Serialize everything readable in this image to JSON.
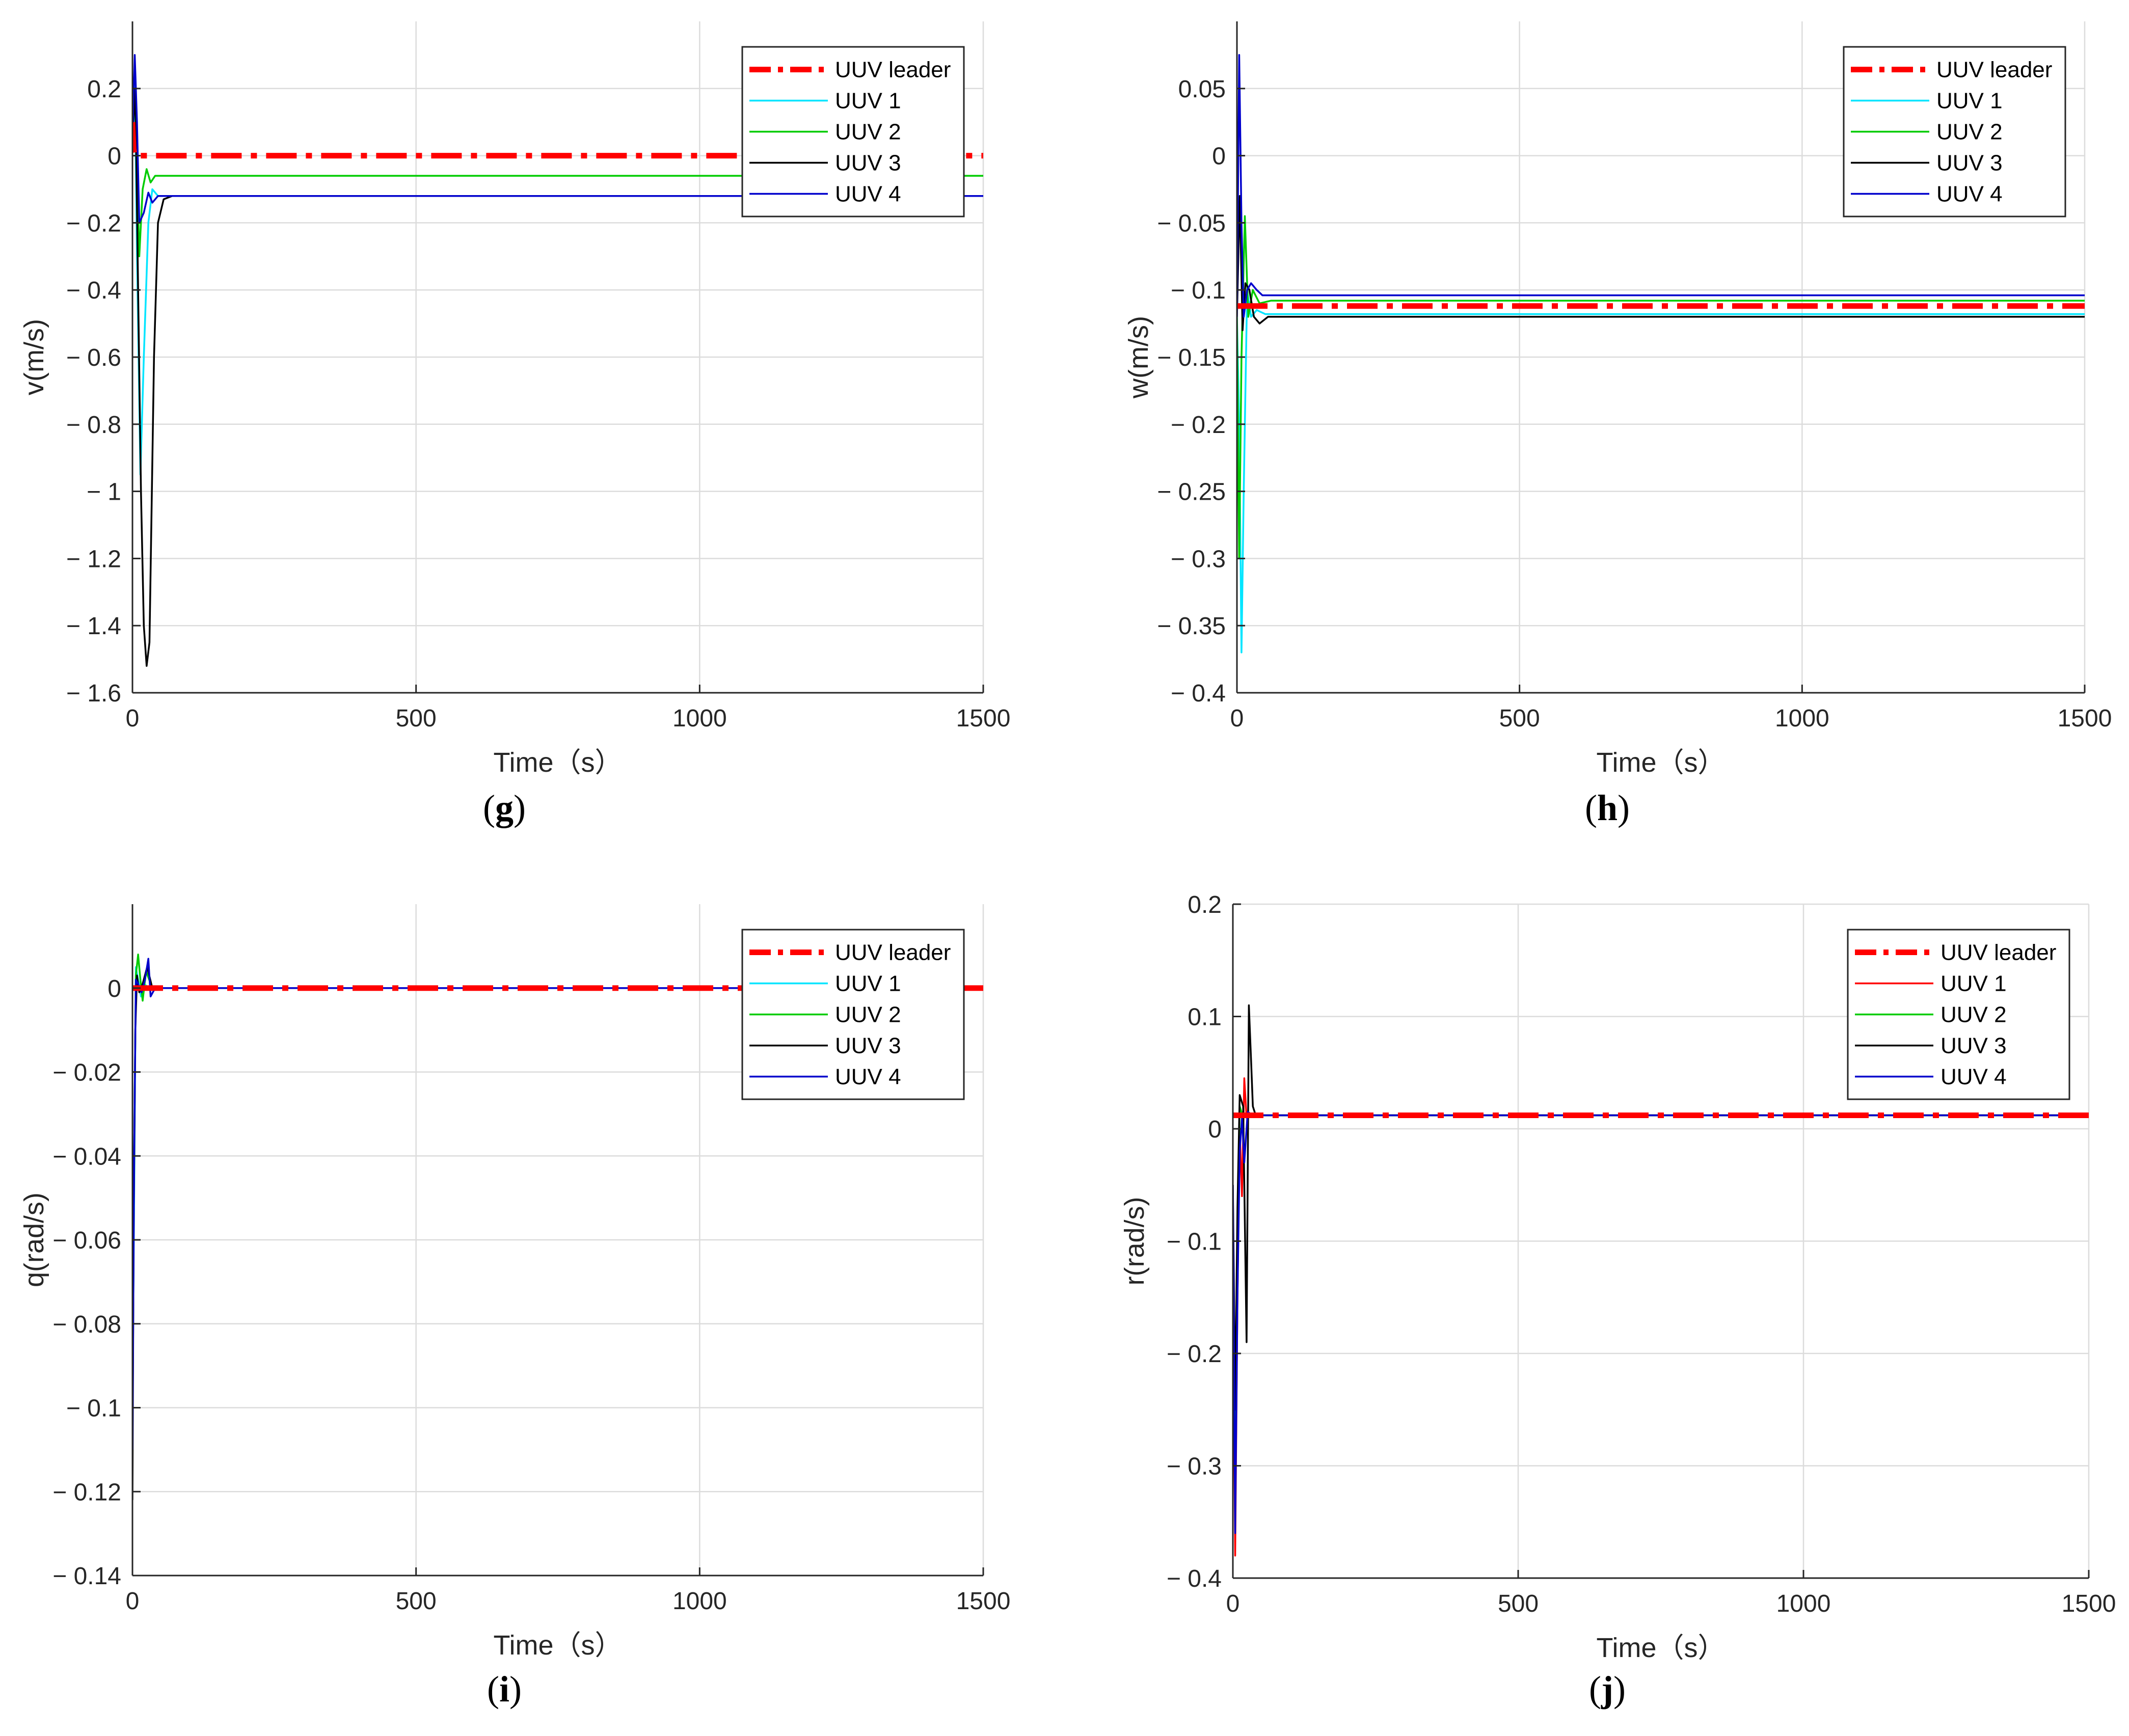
{
  "chart_data": [
    {
      "id": "g",
      "type": "line",
      "caption": "g",
      "xlabel": "Time（s）",
      "ylabel": "v(m/s)",
      "xlim": [
        0,
        1500
      ],
      "ylim": [
        -1.6,
        0.4
      ],
      "grid": true,
      "legend_position": "top-right",
      "xticks": [
        0,
        500,
        1000,
        1500
      ],
      "xtick_labels": [
        "0",
        "500",
        "1000",
        "1500"
      ],
      "yticks": [
        0.2,
        0,
        -0.2,
        -0.4,
        -0.6,
        -0.8,
        -1,
        -1.2,
        -1.4,
        -1.6
      ],
      "ytick_labels": [
        "0.2",
        "0",
        "− 0.2",
        "− 0.4",
        "− 0.6",
        "− 0.8",
        "− 1",
        "− 1.2",
        "− 1.4",
        "− 1.6"
      ],
      "series": [
        {
          "name": "UUV leader",
          "color": "#ff0000",
          "style": "dashdot",
          "x": [
            0,
            2,
            4,
            1500
          ],
          "y": [
            0.1,
            0.02,
            0,
            0
          ]
        },
        {
          "name": "UUV 1",
          "color": "#00e5ff",
          "style": "solid",
          "x": [
            0,
            4,
            8,
            14,
            20,
            28,
            35,
            45,
            60,
            1500
          ],
          "y": [
            0.05,
            0.25,
            -0.3,
            -0.95,
            -0.6,
            -0.2,
            -0.1,
            -0.12,
            -0.12,
            -0.12
          ]
        },
        {
          "name": "UUV 2",
          "color": "#00cc00",
          "style": "solid",
          "x": [
            0,
            6,
            12,
            18,
            25,
            32,
            40,
            60,
            1500
          ],
          "y": [
            0.05,
            0.1,
            -0.3,
            -0.1,
            -0.04,
            -0.08,
            -0.06,
            -0.06,
            -0.06
          ]
        },
        {
          "name": "UUV 3",
          "color": "#000000",
          "style": "solid",
          "x": [
            0,
            5,
            10,
            15,
            20,
            25,
            30,
            38,
            45,
            55,
            70,
            1500
          ],
          "y": [
            0.05,
            0.2,
            -0.4,
            -1.0,
            -1.4,
            -1.52,
            -1.45,
            -0.6,
            -0.2,
            -0.13,
            -0.12,
            -0.12
          ]
        },
        {
          "name": "UUV 4",
          "color": "#0000cc",
          "style": "solid",
          "x": [
            0,
            4,
            8,
            12,
            20,
            28,
            35,
            45,
            60,
            1500
          ],
          "y": [
            0.05,
            0.3,
            0.1,
            -0.2,
            -0.17,
            -0.11,
            -0.14,
            -0.12,
            -0.12,
            -0.12
          ]
        }
      ]
    },
    {
      "id": "h",
      "type": "line",
      "caption": "h",
      "xlabel": "Time（s）",
      "ylabel": "w(m/s)",
      "xlim": [
        0,
        1500
      ],
      "ylim": [
        -0.4,
        0.1
      ],
      "grid": true,
      "legend_position": "top-right",
      "xticks": [
        0,
        500,
        1000,
        1500
      ],
      "xtick_labels": [
        "0",
        "500",
        "1000",
        "1500"
      ],
      "yticks": [
        0.05,
        0,
        -0.05,
        -0.1,
        -0.15,
        -0.2,
        -0.25,
        -0.3,
        -0.35,
        -0.4
      ],
      "ytick_labels": [
        "0.05",
        "0",
        "− 0.05",
        "− 0.1",
        "− 0.15",
        "− 0.2",
        "− 0.25",
        "− 0.3",
        "− 0.35",
        "− 0.4"
      ],
      "series": [
        {
          "name": "UUV leader",
          "color": "#ff0000",
          "style": "dashdot",
          "x": [
            0,
            1500
          ],
          "y": [
            -0.112,
            -0.112
          ]
        },
        {
          "name": "UUV 1",
          "color": "#00e5ff",
          "style": "solid",
          "x": [
            0,
            4,
            8,
            12,
            18,
            25,
            35,
            50,
            1500
          ],
          "y": [
            -0.12,
            -0.2,
            -0.37,
            -0.25,
            -0.1,
            -0.12,
            -0.115,
            -0.118,
            -0.118
          ]
        },
        {
          "name": "UUV 2",
          "color": "#00cc00",
          "style": "solid",
          "x": [
            0,
            4,
            8,
            14,
            20,
            28,
            40,
            60,
            1500
          ],
          "y": [
            -0.12,
            -0.3,
            -0.15,
            -0.045,
            -0.12,
            -0.1,
            -0.11,
            -0.108,
            -0.108
          ]
        },
        {
          "name": "UUV 3",
          "color": "#000000",
          "style": "solid",
          "x": [
            0,
            5,
            10,
            15,
            22,
            30,
            40,
            55,
            70,
            1500
          ],
          "y": [
            -0.12,
            -0.03,
            -0.13,
            -0.095,
            -0.1,
            -0.12,
            -0.125,
            -0.12,
            -0.12,
            -0.12
          ]
        },
        {
          "name": "UUV 4",
          "color": "#0000cc",
          "style": "solid",
          "x": [
            0,
            4,
            8,
            12,
            18,
            25,
            35,
            45,
            60,
            1500
          ],
          "y": [
            -0.12,
            0.075,
            -0.05,
            -0.12,
            -0.1,
            -0.095,
            -0.1,
            -0.104,
            -0.104,
            -0.104
          ]
        }
      ]
    },
    {
      "id": "i",
      "type": "line",
      "caption": "i",
      "xlabel": "Time（s）",
      "ylabel": "q(rad/s)",
      "xlim": [
        0,
        1500
      ],
      "ylim": [
        -0.14,
        0.02
      ],
      "grid": true,
      "legend_position": "top-right",
      "xticks": [
        0,
        500,
        1000,
        1500
      ],
      "xtick_labels": [
        "0",
        "500",
        "1000",
        "1500"
      ],
      "yticks": [
        0,
        -0.02,
        -0.04,
        -0.06,
        -0.08,
        -0.1,
        -0.12,
        -0.14
      ],
      "ytick_labels": [
        "0",
        "− 0.02",
        "− 0.04",
        "− 0.06",
        "− 0.08",
        "− 0.1",
        "− 0.12",
        "− 0.14"
      ],
      "series": [
        {
          "name": "UUV leader",
          "color": "#ff0000",
          "style": "dashdot",
          "x": [
            0,
            1500
          ],
          "y": [
            0,
            0
          ]
        },
        {
          "name": "UUV 1",
          "color": "#00e5ff",
          "style": "solid",
          "x": [
            0,
            3,
            6,
            10,
            15,
            20,
            30,
            1500
          ],
          "y": [
            -0.1,
            -0.05,
            0.005,
            0.002,
            -0.002,
            0.001,
            0,
            0
          ]
        },
        {
          "name": "UUV 2",
          "color": "#00cc00",
          "style": "solid",
          "x": [
            0,
            3,
            6,
            10,
            14,
            18,
            24,
            35,
            1500
          ],
          "y": [
            -0.09,
            -0.04,
            0.003,
            0.008,
            0.002,
            -0.003,
            0.004,
            0,
            0
          ]
        },
        {
          "name": "UUV 3",
          "color": "#000000",
          "style": "solid",
          "x": [
            0,
            2,
            5,
            8,
            12,
            18,
            26,
            35,
            1500
          ],
          "y": [
            -0.122,
            -0.06,
            -0.01,
            0.003,
            -0.001,
            0.001,
            0.005,
            0,
            0
          ]
        },
        {
          "name": "UUV 4",
          "color": "#0000cc",
          "style": "solid",
          "x": [
            0,
            3,
            6,
            10,
            16,
            22,
            28,
            32,
            40,
            1500
          ],
          "y": [
            -0.11,
            -0.04,
            0.002,
            0.001,
            -0.001,
            0.002,
            0.007,
            -0.002,
            0,
            0
          ]
        }
      ]
    },
    {
      "id": "j",
      "type": "line",
      "caption": "j",
      "xlabel": "Time（s）",
      "ylabel": "r(rad/s)",
      "xlim": [
        0,
        1500
      ],
      "ylim": [
        -0.4,
        0.2
      ],
      "grid": true,
      "legend_position": "top-right",
      "xticks": [
        0,
        500,
        1000,
        1500
      ],
      "xtick_labels": [
        "0",
        "500",
        "1000",
        "1500"
      ],
      "yticks": [
        0.2,
        0.1,
        0,
        -0.1,
        -0.2,
        -0.3,
        -0.4
      ],
      "ytick_labels": [
        "0.2",
        "0.1",
        "0",
        "− 0.1",
        "− 0.2",
        "− 0.3",
        "− 0.4"
      ],
      "series": [
        {
          "name": "UUV leader",
          "color": "#ff0000",
          "style": "dashdot",
          "x": [
            0,
            1500
          ],
          "y": [
            0.012,
            0.012
          ]
        },
        {
          "name": "UUV 1",
          "color": "#ff0000",
          "style": "solid",
          "x": [
            0,
            4,
            8,
            12,
            16,
            20,
            24,
            30,
            40,
            1500
          ],
          "y": [
            -0.1,
            -0.38,
            -0.15,
            0.0,
            -0.06,
            0.045,
            0.01,
            0.012,
            0.012,
            0.012
          ]
        },
        {
          "name": "UUV 2",
          "color": "#00cc00",
          "style": "solid",
          "x": [
            0,
            4,
            8,
            12,
            18,
            24,
            32,
            1500
          ],
          "y": [
            -0.08,
            -0.3,
            -0.1,
            0.02,
            0.01,
            0.012,
            0.012,
            0.012
          ]
        },
        {
          "name": "UUV 3",
          "color": "#000000",
          "style": "solid",
          "x": [
            0,
            4,
            8,
            12,
            18,
            24,
            28,
            32,
            35,
            40,
            48,
            60,
            1500
          ],
          "y": [
            -0.05,
            -0.25,
            -0.07,
            0.03,
            0.02,
            -0.19,
            0.11,
            0.06,
            0.02,
            0.012,
            0.012,
            0.012,
            0.012
          ]
        },
        {
          "name": "UUV 4",
          "color": "#0000cc",
          "style": "solid",
          "x": [
            0,
            4,
            8,
            12,
            16,
            20,
            26,
            35,
            1500
          ],
          "y": [
            -0.05,
            -0.36,
            -0.15,
            -0.02,
            0.01,
            -0.03,
            0.015,
            0.012,
            0.012
          ]
        }
      ]
    }
  ]
}
